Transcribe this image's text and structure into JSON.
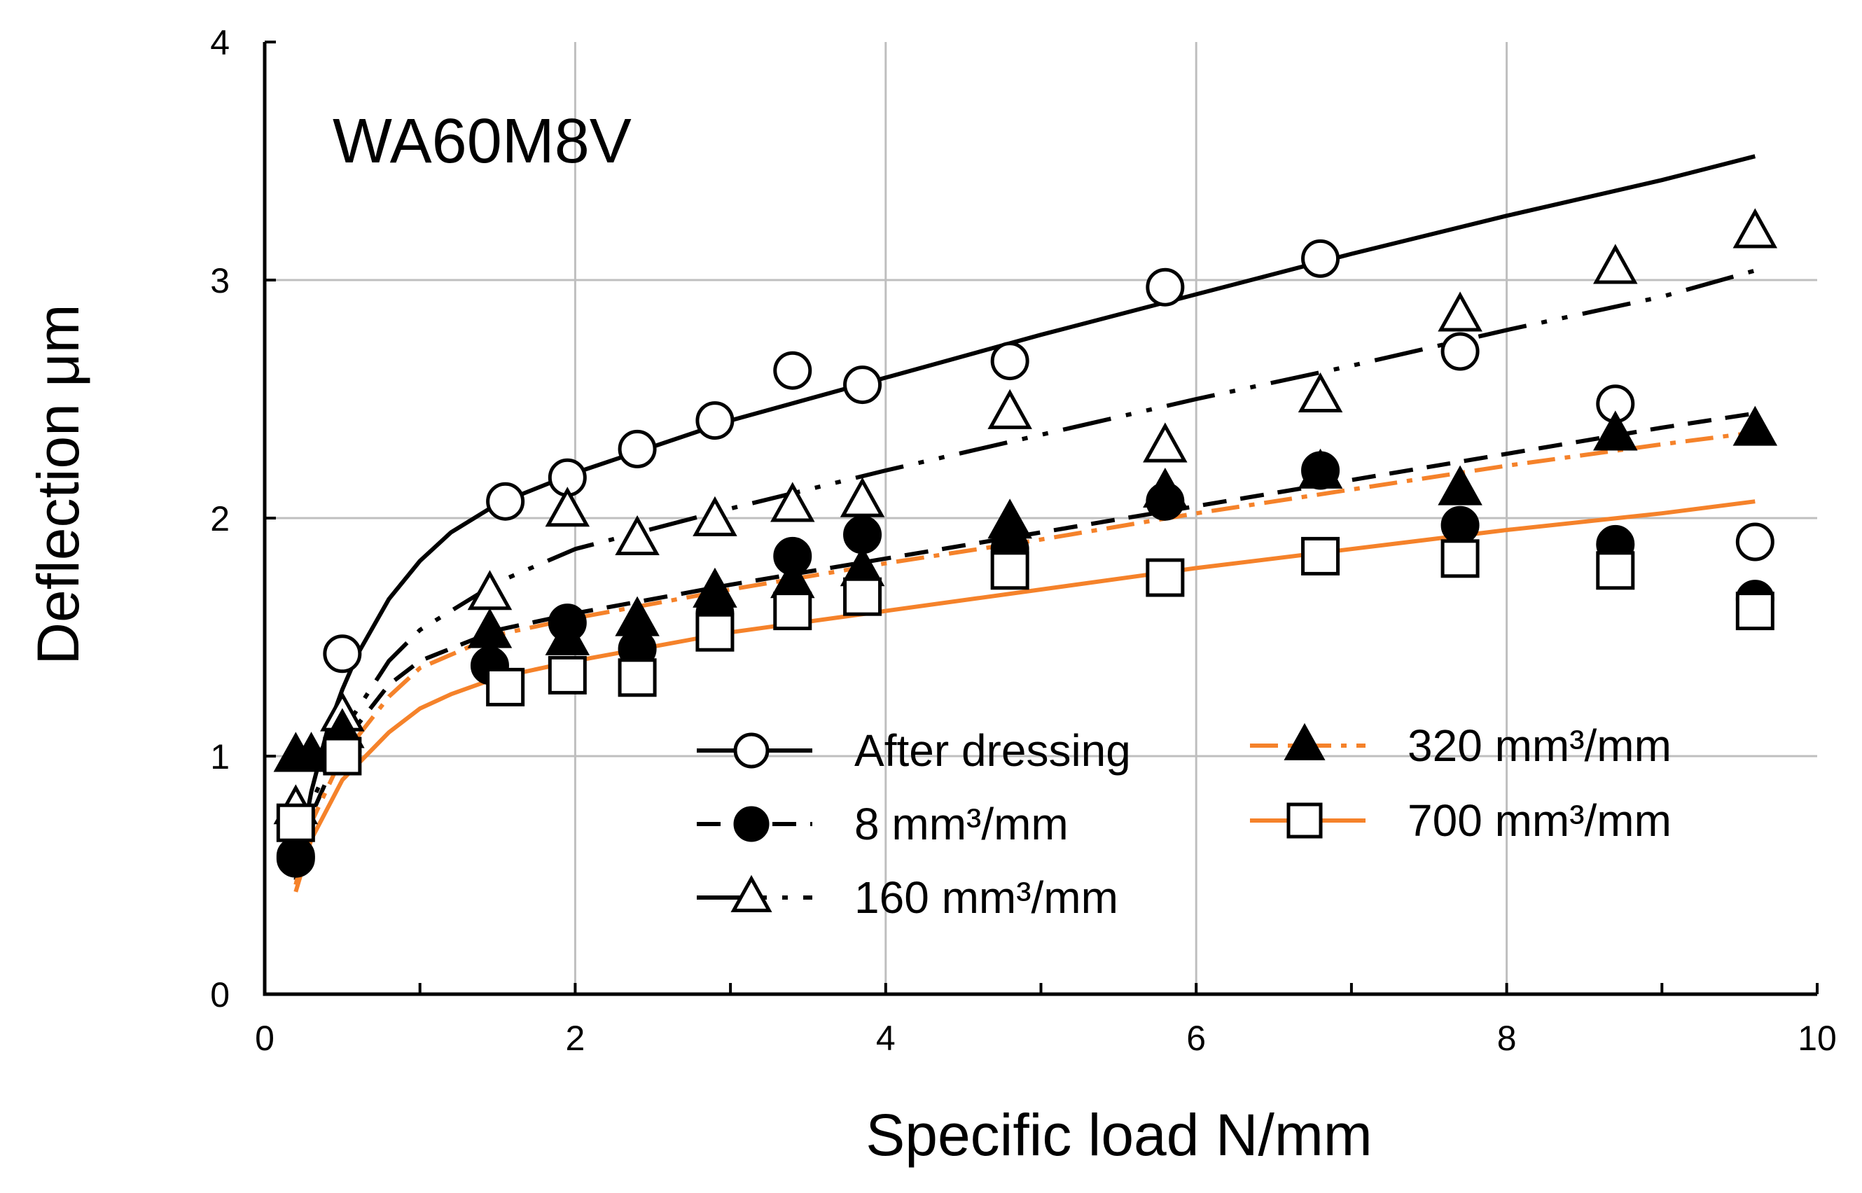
{
  "chart_data": {
    "type": "scatter",
    "title": "",
    "panel_label": "WA60M8V",
    "xlabel": "Specific load N/mm",
    "ylabel": "Deflection μm",
    "xlim": [
      0,
      10
    ],
    "ylim": [
      0,
      4
    ],
    "x_ticks": [
      0,
      2,
      4,
      6,
      8,
      10
    ],
    "y_ticks": [
      0,
      1,
      2,
      3,
      4
    ],
    "x_tick_labels": [
      "0",
      "2",
      "4",
      "6",
      "8",
      "10"
    ],
    "y_tick_labels": [
      "0",
      "1",
      "2",
      "3",
      "4"
    ],
    "grid": true,
    "legend_position": "lower-right",
    "series": [
      {
        "name": "After dressing",
        "marker": "open-circle",
        "line_style": "solid",
        "line_color": "#000000",
        "x": [
          0.2,
          0.5,
          1.55,
          1.95,
          2.4,
          2.9,
          3.4,
          3.85,
          4.8,
          5.8,
          6.8,
          7.7,
          8.7,
          9.6
        ],
        "y": [
          0.57,
          1.43,
          2.07,
          2.17,
          2.29,
          2.41,
          2.62,
          2.56,
          2.66,
          2.97,
          3.09,
          2.7,
          2.48,
          1.9
        ],
        "fit_x": [
          0.2,
          0.3,
          0.4,
          0.5,
          0.6,
          0.8,
          1.0,
          1.2,
          1.5,
          2.0,
          3.0,
          4.0,
          5.0,
          6.0,
          7.0,
          8.0,
          9.0,
          9.6
        ],
        "fit_y": [
          0.5,
          0.85,
          1.1,
          1.28,
          1.43,
          1.66,
          1.82,
          1.94,
          2.06,
          2.19,
          2.41,
          2.59,
          2.77,
          2.94,
          3.11,
          3.27,
          3.42,
          3.52
        ]
      },
      {
        "name": "8 mm³/mm",
        "marker": "filled-circle",
        "line_style": "dashed",
        "line_color": "#000000",
        "x": [
          0.2,
          0.5,
          1.45,
          1.95,
          2.4,
          2.9,
          3.4,
          3.85,
          4.8,
          5.8,
          6.8,
          7.7,
          8.7,
          9.6
        ],
        "y": [
          0.58,
          1.02,
          1.38,
          1.56,
          1.45,
          1.6,
          1.84,
          1.93,
          1.87,
          2.07,
          2.2,
          1.97,
          1.89,
          1.66
        ],
        "fit_x": [
          0.2,
          0.3,
          0.5,
          0.8,
          1.0,
          1.5,
          2.0,
          3.0,
          4.0,
          5.0,
          6.0,
          7.0,
          8.0,
          9.0,
          9.6
        ],
        "fit_y": [
          0.48,
          0.75,
          1.05,
          1.3,
          1.4,
          1.53,
          1.6,
          1.72,
          1.83,
          1.94,
          2.05,
          2.16,
          2.27,
          2.38,
          2.44
        ]
      },
      {
        "name": "160 mm³/mm",
        "marker": "open-triangle",
        "line_style": "dash-dot-dot",
        "line_color": "#000000",
        "x": [
          0.2,
          0.3,
          0.5,
          1.45,
          1.95,
          2.4,
          2.9,
          3.4,
          3.85,
          4.8,
          5.8,
          6.8,
          7.7,
          8.7,
          9.6
        ],
        "y": [
          0.78,
          1.0,
          1.17,
          1.68,
          2.03,
          1.91,
          1.99,
          2.05,
          2.07,
          2.44,
          2.3,
          2.51,
          2.85,
          3.05,
          3.2
        ],
        "fit_x": [
          0.2,
          0.3,
          0.5,
          0.8,
          1.0,
          1.5,
          2.0,
          3.0,
          4.0,
          5.0,
          6.0,
          7.0,
          8.0,
          9.0,
          9.6
        ],
        "fit_y": [
          0.5,
          0.8,
          1.1,
          1.4,
          1.53,
          1.73,
          1.87,
          2.04,
          2.2,
          2.35,
          2.5,
          2.64,
          2.79,
          2.93,
          3.04
        ]
      },
      {
        "name": "320 mm³/mm",
        "marker": "filled-triangle",
        "line_style": "dash-dot",
        "line_color": "#f5822a",
        "x": [
          0.2,
          0.3,
          0.5,
          1.45,
          1.95,
          2.4,
          2.9,
          3.4,
          3.85,
          4.8,
          5.8,
          6.8,
          7.7,
          8.7,
          9.6
        ],
        "y": [
          1.0,
          1.0,
          1.1,
          1.52,
          1.49,
          1.57,
          1.69,
          1.73,
          1.78,
          1.98,
          2.11,
          2.19,
          2.12,
          2.35,
          2.37
        ],
        "fit_x": [
          0.2,
          0.3,
          0.5,
          0.8,
          1.0,
          1.5,
          2.0,
          3.0,
          4.0,
          5.0,
          6.0,
          7.0,
          8.0,
          9.0,
          9.6
        ],
        "fit_y": [
          0.46,
          0.72,
          1.0,
          1.25,
          1.37,
          1.51,
          1.58,
          1.7,
          1.81,
          1.91,
          2.02,
          2.12,
          2.22,
          2.31,
          2.36
        ]
      },
      {
        "name": "700 mm³/mm",
        "marker": "open-square",
        "line_style": "solid",
        "line_color": "#f5822a",
        "x": [
          0.2,
          0.5,
          1.55,
          1.95,
          2.4,
          2.9,
          3.4,
          3.85,
          4.8,
          5.8,
          6.8,
          7.7,
          8.7,
          9.6
        ],
        "y": [
          0.72,
          1.0,
          1.29,
          1.34,
          1.33,
          1.52,
          1.61,
          1.67,
          1.78,
          1.75,
          1.84,
          1.83,
          1.78,
          1.61
        ],
        "fit_x": [
          0.2,
          0.3,
          0.5,
          0.8,
          1.0,
          1.2,
          1.5,
          2.0,
          3.0,
          4.0,
          5.0,
          6.0,
          7.0,
          8.0,
          9.0,
          9.6
        ],
        "fit_y": [
          0.43,
          0.65,
          0.9,
          1.1,
          1.2,
          1.26,
          1.33,
          1.4,
          1.52,
          1.61,
          1.7,
          1.79,
          1.87,
          1.95,
          2.02,
          2.07
        ]
      }
    ]
  }
}
